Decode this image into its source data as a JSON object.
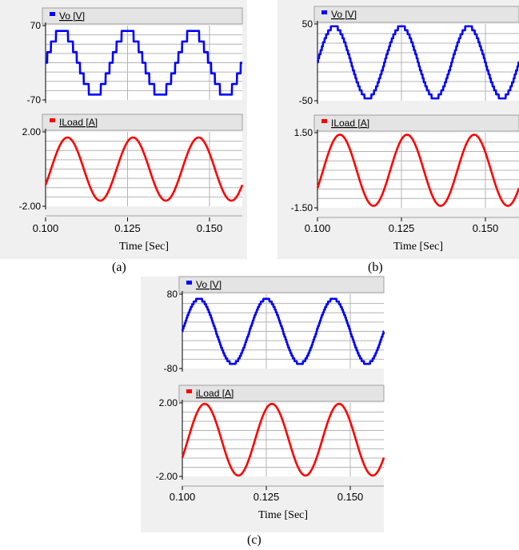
{
  "captions": [
    "(a)",
    "(b)",
    "(c)"
  ],
  "chart_data": [
    {
      "type": "line",
      "caption": "(a)",
      "xlabel": "Time [Sec]",
      "xlim": [
        0.1,
        0.16
      ],
      "xticks": [
        "0.100",
        "0.125",
        "0.150"
      ],
      "subplots": [
        {
          "series": [
            {
              "name": "Vo [V]",
              "color": "#0000ff",
              "waveform": "multilevel staircase sine",
              "amplitude": 60,
              "levels": 7,
              "frequency_hz": 50,
              "phase_deg": 0
            }
          ],
          "ylim": [
            -70,
            70
          ],
          "yticks": [
            "70",
            "-70"
          ]
        },
        {
          "series": [
            {
              "name": "ILoad [A]",
              "color": "#ff0000",
              "waveform": "sine",
              "amplitude": 1.7,
              "frequency_hz": 50,
              "phase_deg": -30
            }
          ],
          "ylim": [
            -2,
            2
          ],
          "yticks": [
            "2.00",
            "-2.00"
          ]
        }
      ]
    },
    {
      "type": "line",
      "caption": "(b)",
      "xlabel": "Time [Sec]",
      "xlim": [
        0.1,
        0.16
      ],
      "xticks": [
        "0.100",
        "0.125",
        "0.150"
      ],
      "subplots": [
        {
          "series": [
            {
              "name": "Vo [V]",
              "color": "#0000ff",
              "waveform": "multilevel staircase sine",
              "amplitude": 47,
              "levels": 19,
              "frequency_hz": 50,
              "phase_deg": 0
            }
          ],
          "ylim": [
            -50,
            50
          ],
          "yticks": [
            "50",
            "-50"
          ]
        },
        {
          "series": [
            {
              "name": "ILoad [A]",
              "color": "#ff0000",
              "waveform": "sine",
              "amplitude": 1.42,
              "frequency_hz": 50,
              "phase_deg": -30
            }
          ],
          "ylim": [
            -1.5,
            1.5
          ],
          "yticks": [
            "1.50",
            "-1.50"
          ]
        }
      ]
    },
    {
      "type": "line",
      "caption": "(c)",
      "xlabel": "Time [Sec]",
      "xlim": [
        0.1,
        0.16
      ],
      "xticks": [
        "0.100",
        "0.125",
        "0.150"
      ],
      "subplots": [
        {
          "series": [
            {
              "name": "Vo [V]",
              "color": "#0000ff",
              "waveform": "multilevel staircase sine",
              "amplitude": 70,
              "levels": 25,
              "frequency_hz": 50,
              "phase_deg": 0
            }
          ],
          "ylim": [
            -80,
            80
          ],
          "yticks": [
            "80",
            "-80"
          ]
        },
        {
          "series": [
            {
              "name": "iLoad [A]",
              "color": "#ff0000",
              "waveform": "sine",
              "amplitude": 1.95,
              "frequency_hz": 50,
              "phase_deg": -30
            }
          ],
          "ylim": [
            -2,
            2
          ],
          "yticks": [
            "2.00",
            "-2.00"
          ]
        }
      ]
    }
  ]
}
